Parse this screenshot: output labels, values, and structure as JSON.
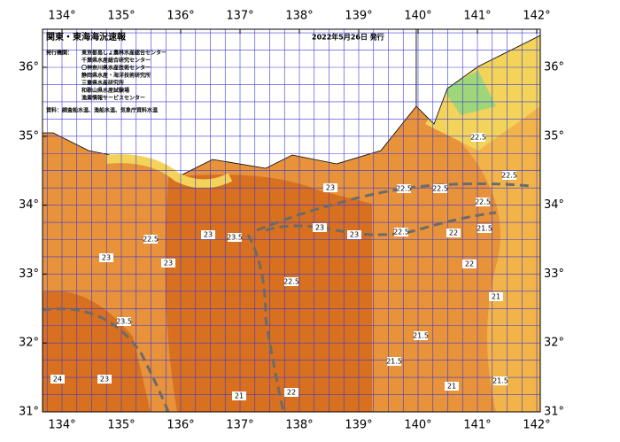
{
  "map": {
    "title": "関東・東海海況速報",
    "date": "2022年5月26日 発行",
    "issuers_label": "発行機関：",
    "issuers": [
      "東京都島しょ農林水産総合センター",
      "千葉県水産総合研究センター",
      "〇神奈川県水産技術センター",
      "静岡県水産・海洋技術研究所",
      "三重県水産研究所",
      "和歌山県水産試験場",
      "漁業情報サービスセンター"
    ],
    "source": "資料：調査船水温、漁船水温、気象庁資料水温",
    "lon_ticks": [
      {
        "value": 134,
        "label": "134°"
      },
      {
        "value": 135,
        "label": "135°"
      },
      {
        "value": 136,
        "label": "136°"
      },
      {
        "value": 137,
        "label": "137°"
      },
      {
        "value": 138,
        "label": "138°"
      },
      {
        "value": 139,
        "label": "139°"
      },
      {
        "value": 140,
        "label": "140°"
      },
      {
        "value": 141,
        "label": "141°"
      },
      {
        "value": 142,
        "label": "142°"
      }
    ],
    "lat_ticks": [
      {
        "value": 36,
        "label": "36°"
      },
      {
        "value": 35,
        "label": "35°"
      },
      {
        "value": 34,
        "label": "34°"
      },
      {
        "value": 33,
        "label": "33°"
      },
      {
        "value": 32,
        "label": "32°"
      },
      {
        "value": 31,
        "label": "31°"
      }
    ],
    "temperature_labels": [
      23,
      22.5,
      22.5,
      22.5,
      22,
      22.5,
      22.5,
      23,
      23,
      23.5,
      22.5,
      22,
      21.5,
      22.5,
      23,
      23,
      21,
      21.5,
      24,
      23,
      21.5,
      21,
      22,
      21,
      21.5,
      22.5,
      23.5,
      23
    ]
  }
}
